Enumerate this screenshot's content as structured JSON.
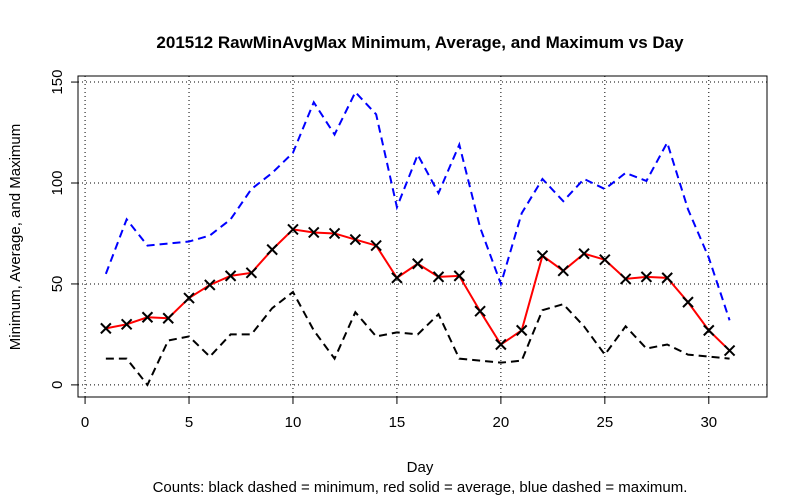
{
  "chart_data": {
    "type": "line",
    "title": "201512 RawMinAvgMax Minimum, Average, and Maximum vs Day",
    "xlabel": "Day",
    "ylabel": "Minimum, Average, and Maximum",
    "caption": "Counts: black dashed = minimum, red solid = average, blue dashed = maximum.",
    "x": [
      1,
      2,
      3,
      4,
      5,
      6,
      7,
      8,
      9,
      10,
      11,
      12,
      13,
      14,
      15,
      16,
      17,
      18,
      19,
      20,
      21,
      22,
      23,
      24,
      25,
      26,
      27,
      28,
      29,
      30,
      31
    ],
    "series": [
      {
        "color": "#000000",
        "dash": true,
        "marker": false,
        "values": [
          13,
          13,
          0,
          22,
          24,
          14,
          25,
          25,
          38,
          46,
          27,
          13,
          36,
          24,
          26,
          25,
          35,
          13,
          12,
          11,
          12,
          37,
          40,
          29,
          15,
          29,
          18,
          20,
          15,
          14,
          13
        ]
      },
      {
        "color": "#ff0000",
        "dash": false,
        "marker": true,
        "values": [
          28,
          30,
          33.5,
          33,
          43,
          49.5,
          54,
          55.5,
          67,
          77,
          75.5,
          75,
          72,
          69,
          53,
          60,
          53.5,
          54,
          36.5,
          20,
          27,
          64,
          56.5,
          65,
          62,
          52.5,
          53.5,
          53,
          41,
          27,
          17
        ]
      },
      {
        "color": "#0000ff",
        "dash": true,
        "marker": false,
        "values": [
          55,
          82,
          69,
          70,
          71,
          74,
          82,
          97,
          105,
          115,
          140,
          124,
          145,
          134,
          88,
          114,
          95,
          119,
          78,
          50,
          85,
          102,
          91,
          102,
          97,
          105,
          101,
          120,
          87,
          63,
          32
        ]
      }
    ],
    "xlim": [
      -0.34,
      32.8
    ],
    "ylim": [
      -6,
      153
    ],
    "xticks": [
      0,
      5,
      10,
      15,
      20,
      25,
      30
    ],
    "yticks": [
      0,
      50,
      100,
      150
    ],
    "grid": true
  }
}
